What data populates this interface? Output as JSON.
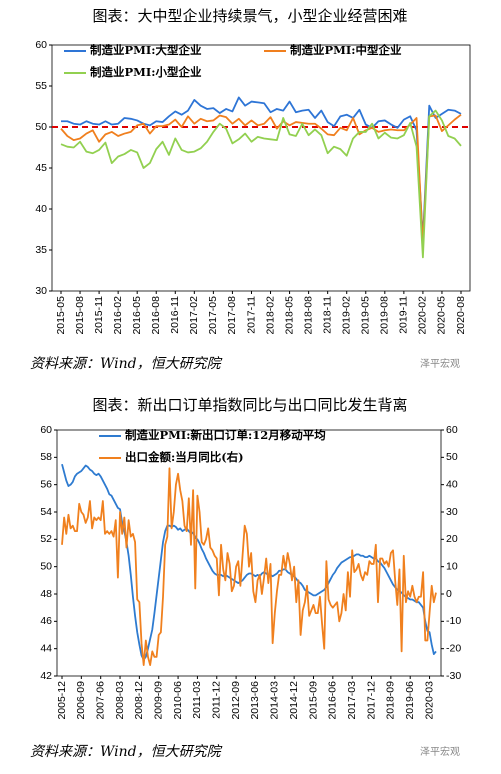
{
  "chart_data": [
    {
      "type": "line",
      "title": "图表：大中型企业持续景气，小型企业经营困难",
      "source": "资料来源：Wind，恒大研究院",
      "watermark": "泽平宏观",
      "categories": [
        "2015-05",
        null,
        null,
        "2015-08",
        null,
        null,
        "2015-11",
        null,
        null,
        "2016-02",
        null,
        null,
        "2016-05",
        null,
        null,
        "2016-08",
        null,
        null,
        "2016-11",
        null,
        null,
        "2017-02",
        null,
        null,
        "2017-05",
        null,
        null,
        "2017-08",
        null,
        null,
        "2017-11",
        null,
        null,
        "2018-02",
        null,
        null,
        "2018-05",
        null,
        null,
        "2018-08",
        null,
        null,
        "2018-11",
        null,
        null,
        "2019-02",
        null,
        null,
        "2019-05",
        null,
        null,
        "2019-08",
        null,
        null,
        "2019-11",
        null,
        null,
        "2020-02",
        null,
        null,
        "2020-05",
        null,
        null,
        "2020-08"
      ],
      "series": [
        {
          "name": "制造业PMI:大型企业",
          "color": "#2e75d6",
          "values": [
            50.7,
            50.7,
            50.4,
            50.3,
            50.7,
            50.4,
            50.3,
            50.7,
            50.3,
            50.4,
            51.1,
            51.0,
            50.8,
            50.4,
            50.2,
            50.7,
            50.6,
            51.3,
            51.9,
            51.5,
            52.0,
            53.3,
            52.6,
            52.2,
            52.3,
            51.7,
            52.2,
            51.9,
            53.6,
            52.6,
            53.1,
            53.0,
            52.9,
            51.8,
            52.2,
            52.0,
            53.1,
            51.8,
            52.0,
            52.1,
            51.1,
            52.0,
            50.6,
            50.1,
            51.3,
            51.5,
            51.1,
            52.1,
            50.3,
            49.9,
            50.7,
            50.8,
            50.3,
            49.9,
            50.9,
            51.3,
            49.6,
            36.3,
            52.6,
            51.1,
            51.6,
            52.1,
            52.0,
            51.6
          ]
        },
        {
          "name": "制造业PMI:中型企业",
          "color": "#f07f1e",
          "values": [
            49.8,
            48.9,
            48.4,
            48.6,
            49.2,
            49.6,
            48.2,
            49.1,
            49.4,
            48.9,
            49.2,
            49.4,
            50.2,
            50.4,
            49.2,
            50.1,
            50.1,
            50.3,
            50.9,
            50.0,
            51.3,
            50.4,
            51.0,
            50.7,
            50.8,
            51.4,
            51.2,
            50.4,
            51.0,
            50.2,
            50.8,
            50.2,
            50.4,
            51.2,
            49.8,
            50.7,
            50.2,
            50.6,
            50.5,
            50.4,
            50.4,
            49.8,
            49.1,
            49.0,
            49.9,
            49.6,
            51.1,
            49.1,
            49.6,
            49.9,
            49.4,
            49.6,
            49.7,
            49.6,
            49.6,
            50.3,
            51.1,
            35.5,
            51.3,
            51.4,
            49.5,
            50.2,
            50.9,
            51.5
          ]
        },
        {
          "name": "制造业PMI:小型企业",
          "color": "#92d050",
          "values": [
            47.9,
            47.6,
            47.5,
            48.2,
            47.0,
            46.8,
            47.2,
            48.1,
            45.6,
            46.4,
            46.7,
            47.2,
            46.9,
            45.0,
            45.6,
            47.3,
            48.2,
            46.6,
            48.6,
            47.2,
            46.9,
            47.0,
            47.4,
            48.2,
            49.4,
            50.4,
            49.8,
            48.0,
            48.5,
            49.2,
            48.2,
            48.8,
            48.6,
            48.5,
            48.4,
            51.1,
            49.1,
            48.9,
            50.4,
            49.0,
            49.7,
            49.0,
            46.8,
            47.6,
            47.3,
            46.5,
            48.6,
            49.4,
            49.4,
            50.4,
            48.6,
            49.3,
            48.7,
            48.6,
            49.0,
            50.5,
            47.6,
            34.1,
            51.3,
            52.0,
            50.8,
            48.9,
            48.6,
            47.7
          ]
        }
      ],
      "ylim": [
        30,
        60
      ],
      "yticks": [
        30,
        35,
        40,
        45,
        50,
        55,
        60
      ],
      "reference_line": 50,
      "reference_color": "#e00000"
    },
    {
      "type": "line",
      "title": "图表：新出口订单指数同比与出口同比发生背离",
      "source": "资料来源：Wind，恒大研究院",
      "watermark": "泽平宏观",
      "categories": [
        "2005-12",
        null,
        null,
        null,
        null,
        null,
        null,
        null,
        null,
        "2006-09",
        null,
        null,
        null,
        null,
        null,
        null,
        null,
        null,
        "2007-06",
        null,
        null,
        null,
        null,
        null,
        null,
        null,
        null,
        "2008-03",
        null,
        null,
        null,
        null,
        null,
        null,
        null,
        null,
        "2008-12",
        null,
        null,
        null,
        null,
        null,
        null,
        null,
        null,
        "2009-09",
        null,
        null,
        null,
        null,
        null,
        null,
        null,
        null,
        "2010-06",
        null,
        null,
        null,
        null,
        null,
        null,
        null,
        null,
        "2011-03",
        null,
        null,
        null,
        null,
        null,
        null,
        null,
        null,
        "2011-12",
        null,
        null,
        null,
        null,
        null,
        null,
        null,
        null,
        "2012-09",
        null,
        null,
        null,
        null,
        null,
        null,
        null,
        null,
        "2013-06",
        null,
        null,
        null,
        null,
        null,
        null,
        null,
        null,
        "2014-03",
        null,
        null,
        null,
        null,
        null,
        null,
        null,
        null,
        "2014-12",
        null,
        null,
        null,
        null,
        null,
        null,
        null,
        null,
        "2015-09",
        null,
        null,
        null,
        null,
        null,
        null,
        null,
        null,
        "2016-06",
        null,
        null,
        null,
        null,
        null,
        null,
        null,
        null,
        "2017-03",
        null,
        null,
        null,
        null,
        null,
        null,
        null,
        null,
        "2017-12",
        null,
        null,
        null,
        null,
        null,
        null,
        null,
        null,
        "2018-09",
        null,
        null,
        null,
        null,
        null,
        null,
        null,
        null,
        "2019-06",
        null,
        null,
        null,
        null,
        null,
        null,
        null,
        null,
        "2020-03",
        null,
        null,
        null
      ],
      "series": [
        {
          "name": "制造业PMI:新出口订单:12月移动平均",
          "color": "#2e7bd0",
          "values": [
            57.5,
            56.9,
            56.3,
            55.9,
            56.0,
            56.2,
            56.6,
            56.8,
            56.9,
            57.0,
            57.2,
            57.4,
            57.3,
            57.1,
            57.0,
            56.8,
            56.7,
            56.8,
            56.6,
            56.3,
            56.0,
            55.7,
            55.3,
            55.2,
            54.9,
            54.6,
            54.3,
            54.2,
            53.2,
            52.6,
            51.8,
            50.8,
            49.4,
            47.8,
            46.4,
            45.2,
            44.3,
            43.5,
            43.2,
            43.4,
            44.0,
            44.7,
            45.4,
            46.6,
            47.9,
            49.2,
            50.5,
            51.8,
            52.6,
            53.0,
            53.0,
            52.9,
            53.0,
            52.9,
            52.7,
            52.8,
            52.6,
            52.7,
            52.8,
            52.6,
            52.4,
            52.5,
            52.1,
            52.0,
            51.7,
            51.3,
            51.0,
            50.6,
            50.3,
            50.0,
            49.7,
            49.5,
            49.4,
            49.4,
            49.4,
            49.3,
            49.4,
            49.3,
            49.2,
            49.1,
            49.0,
            48.9,
            48.8,
            48.9,
            49.0,
            49.2,
            49.4,
            49.5,
            49.5,
            49.4,
            49.3,
            49.4,
            49.3,
            49.5,
            49.6,
            49.5,
            49.4,
            49.4,
            49.3,
            49.4,
            49.5,
            49.7,
            49.7,
            49.8,
            49.8,
            49.6,
            49.5,
            49.4,
            49.3,
            49.1,
            48.9,
            48.8,
            48.6,
            48.3,
            48.2,
            48.1,
            48.0,
            47.9,
            47.9,
            48.0,
            48.1,
            48.2,
            48.3,
            48.5,
            48.8,
            49.1,
            49.4,
            49.6,
            49.9,
            50.1,
            50.3,
            50.4,
            50.5,
            50.6,
            50.7,
            50.7,
            50.8,
            50.9,
            50.9,
            50.8,
            50.8,
            50.7,
            50.7,
            50.8,
            50.7,
            50.6,
            50.6,
            50.4,
            50.3,
            50.1,
            49.9,
            49.6,
            49.3,
            49.0,
            48.7,
            48.5,
            48.3,
            48.2,
            48.1,
            47.9,
            47.8,
            47.7,
            47.6,
            47.6,
            47.5,
            47.4,
            47.4,
            47.2,
            47.0,
            46.0,
            45.3,
            45.2,
            44.3,
            43.6,
            43.8
          ]
        },
        {
          "name": "出口金额:当月同比(右)",
          "color": "#f0801e",
          "axis": "y2",
          "values": [
            18,
            28,
            22,
            29,
            24,
            25,
            23,
            23,
            33,
            30,
            29,
            26,
            28,
            34,
            24,
            28,
            27,
            28,
            27,
            34,
            22,
            23,
            22,
            23,
            21,
            27,
            6,
            30,
            22,
            28,
            17,
            27,
            21,
            22,
            19,
            -2,
            -3,
            -18,
            -26,
            -17,
            -23,
            -26,
            -21,
            -23,
            -23,
            -15,
            -14,
            -1,
            18,
            21,
            46,
            24,
            30,
            40,
            44,
            38,
            34,
            25,
            23,
            35,
            18,
            38,
            2,
            36,
            30,
            19,
            18,
            20,
            24,
            17,
            16,
            14,
            13,
            -0.5,
            18,
            9,
            5,
            15,
            11,
            1,
            3,
            10,
            12,
            3,
            14,
            25,
            22,
            10,
            15,
            1,
            -3,
            5,
            7,
            0,
            6,
            13,
            4,
            11,
            -18,
            -7,
            1,
            7,
            7,
            14,
            9,
            15,
            11,
            5,
            10,
            -3,
            5,
            -15,
            -6,
            -3,
            3,
            -8,
            -6,
            -4,
            -7,
            -7,
            -1,
            -11,
            -20,
            12,
            -2,
            -4,
            -5,
            -4,
            -3,
            -10,
            -7,
            0,
            -6,
            8,
            -1,
            16,
            8,
            9,
            11,
            7,
            5,
            8,
            7,
            12,
            11,
            11,
            18,
            -3,
            13,
            13,
            11,
            12,
            10,
            15,
            16,
            5,
            -4,
            9,
            -21,
            14,
            -3,
            1,
            -1,
            3,
            -1,
            -3,
            -1,
            -1,
            8,
            -17,
            -17,
            -7,
            3,
            -3,
            0.5
          ]
        }
      ],
      "ylim": [
        42,
        60
      ],
      "yticks": [
        42,
        44,
        46,
        48,
        50,
        52,
        54,
        56,
        58,
        60
      ],
      "y2lim": [
        -30,
        60
      ],
      "y2ticks": [
        -30,
        -20,
        -10,
        0,
        10,
        20,
        30,
        40,
        50,
        60
      ]
    }
  ]
}
